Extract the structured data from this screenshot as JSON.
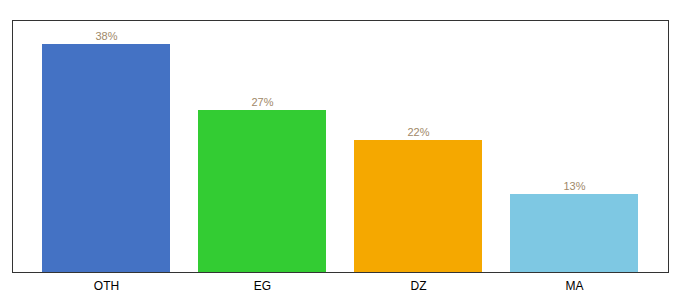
{
  "chart_data": {
    "type": "bar",
    "categories": [
      "OTH",
      "EG",
      "DZ",
      "MA"
    ],
    "values": [
      38,
      27,
      22,
      13
    ],
    "value_labels": [
      "38%",
      "27%",
      "22%",
      "13%"
    ],
    "colors": [
      "#4472c4",
      "#33cc33",
      "#f5a800",
      "#7ec8e3"
    ],
    "ylim": [
      0,
      42
    ],
    "data_labels": true,
    "tick_labels": "x",
    "grid": false
  }
}
